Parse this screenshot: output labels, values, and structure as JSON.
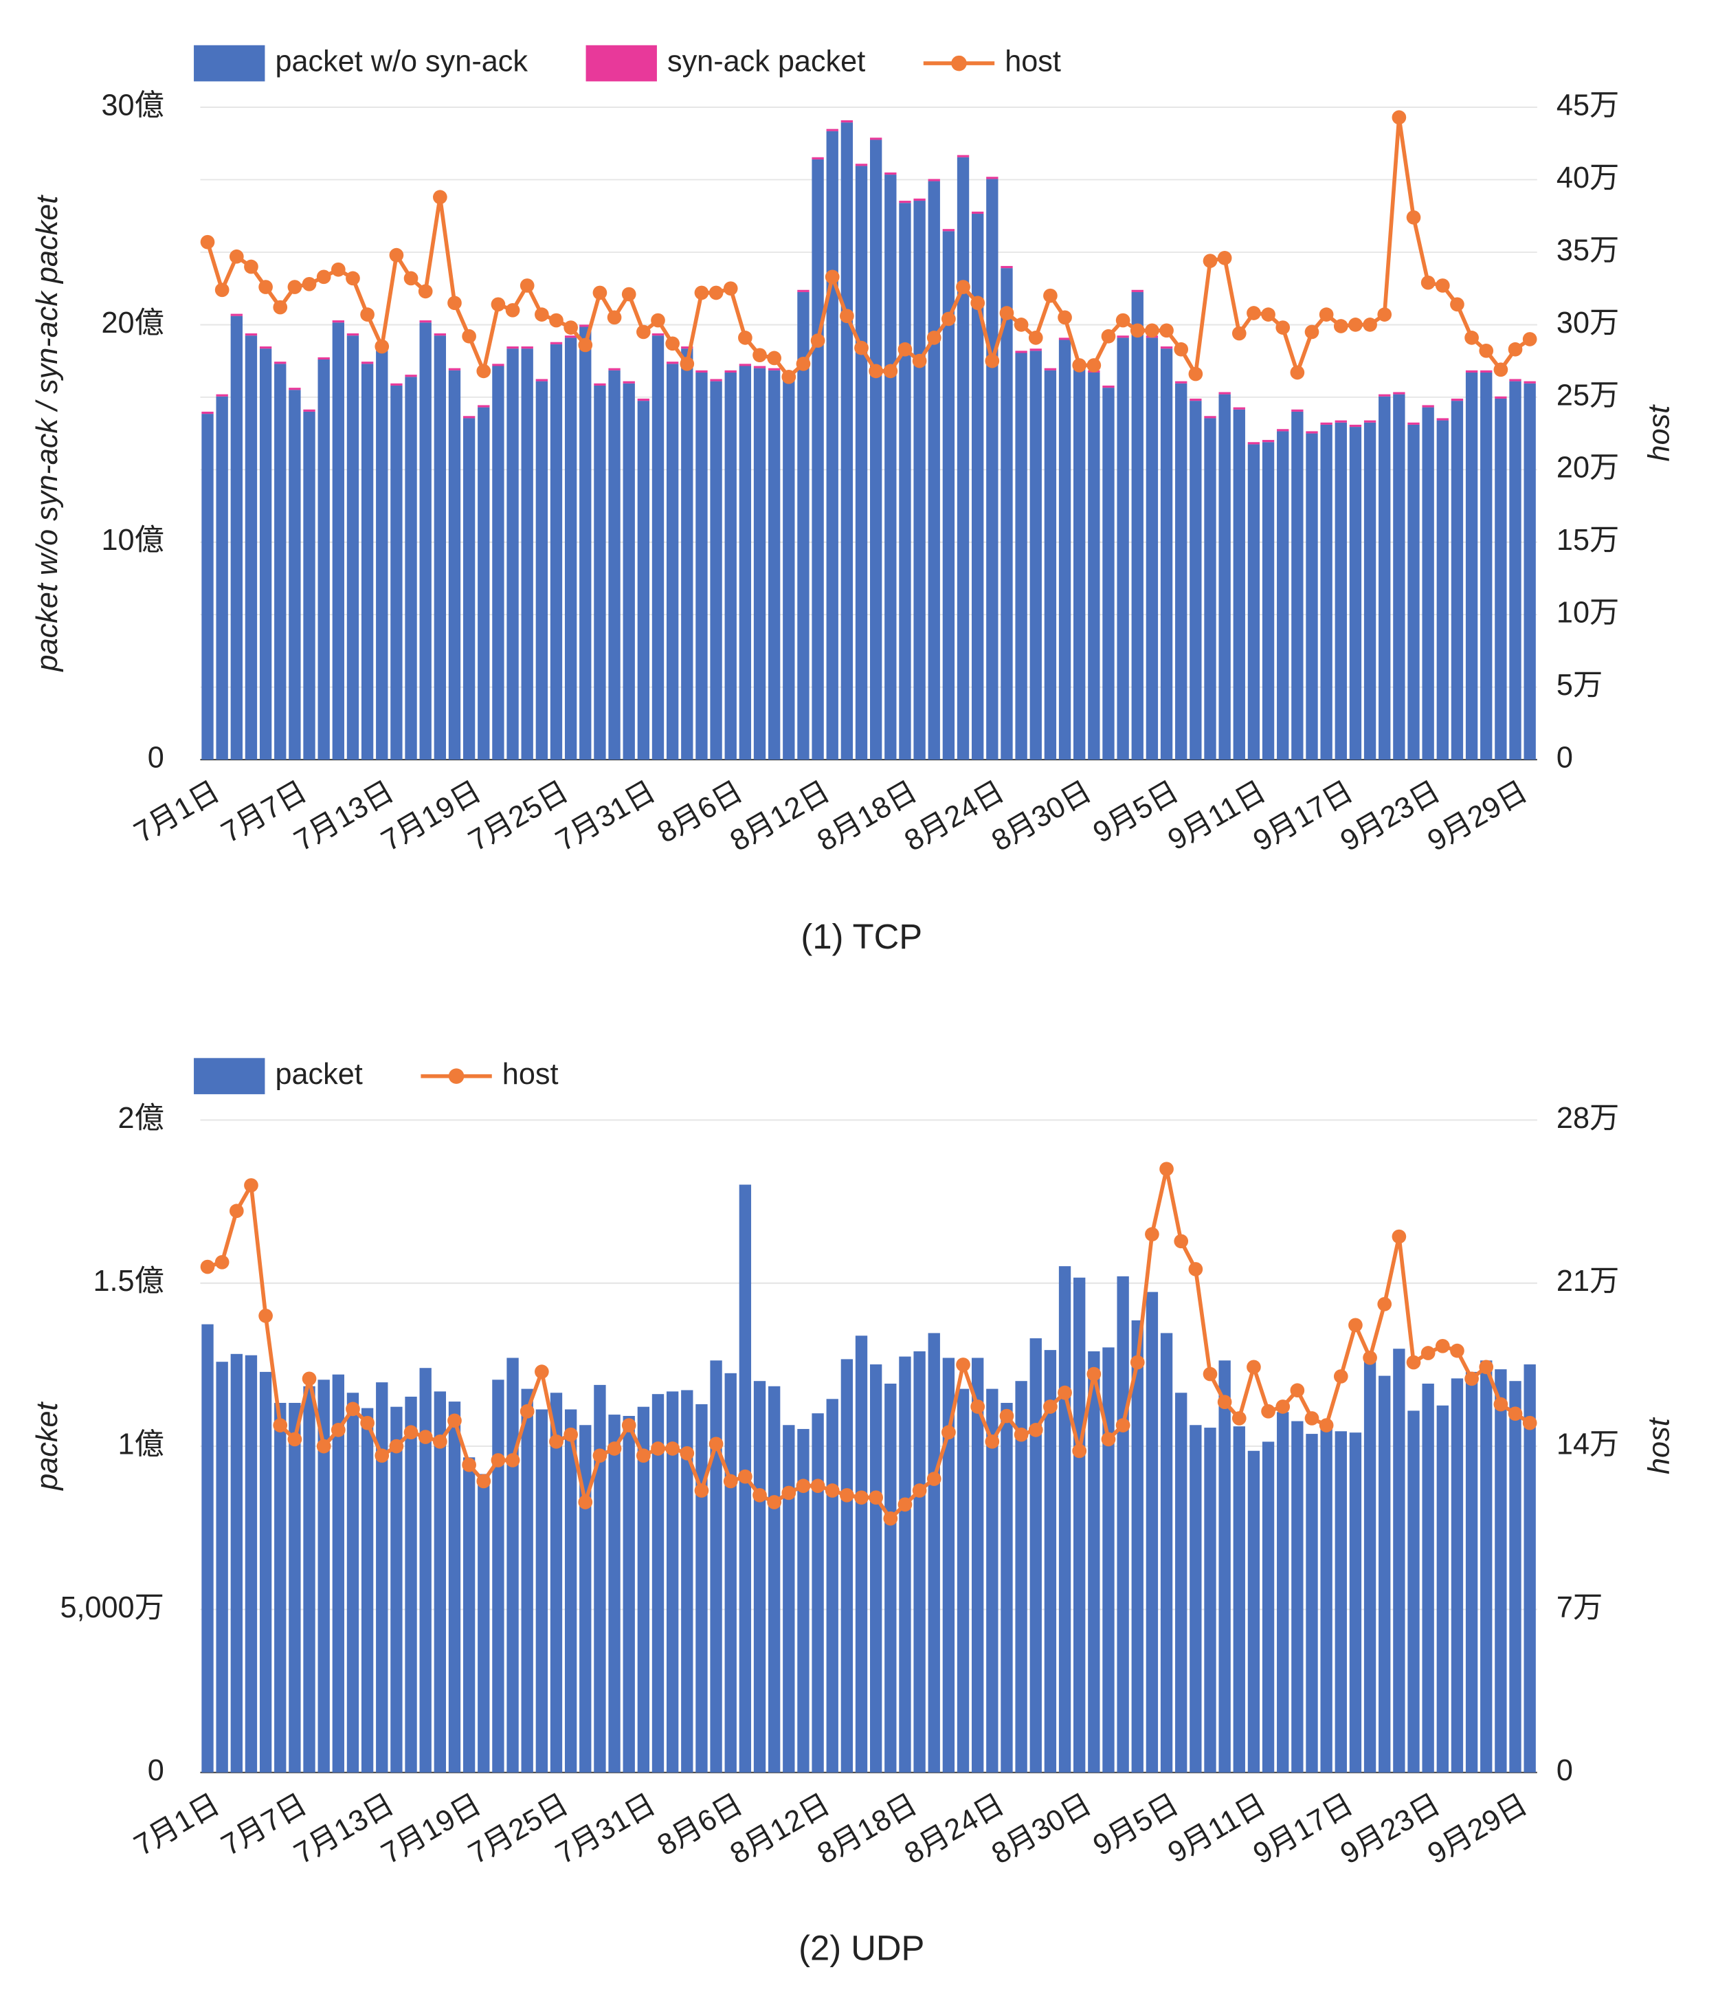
{
  "chart_data": [
    {
      "type": "bar",
      "title": "(1) TCP",
      "y_label": "packet w/o syn-ack / syn-ack packet",
      "y2_label": "host",
      "stacked": true,
      "grid": true,
      "categories": [
        "7月1日",
        null,
        null,
        null,
        null,
        null,
        "7月7日",
        null,
        null,
        null,
        null,
        null,
        "7月13日",
        null,
        null,
        null,
        null,
        null,
        "7月19日",
        null,
        null,
        null,
        null,
        null,
        "7月25日",
        null,
        null,
        null,
        null,
        null,
        "7月31日",
        null,
        null,
        null,
        null,
        null,
        "8月6日",
        null,
        null,
        null,
        null,
        null,
        "8月12日",
        null,
        null,
        null,
        null,
        null,
        "8月18日",
        null,
        null,
        null,
        null,
        null,
        "8月24日",
        null,
        null,
        null,
        null,
        null,
        "8月30日",
        null,
        null,
        null,
        null,
        null,
        "9月5日",
        null,
        null,
        null,
        null,
        null,
        "9月11日",
        null,
        null,
        null,
        null,
        null,
        "9月17日",
        null,
        null,
        null,
        null,
        null,
        "9月23日",
        null,
        null,
        null,
        null,
        null,
        "9月29日",
        null
      ],
      "ylim": [
        0,
        3000000000.0
      ],
      "yticks": [
        0,
        {
          "value": 1000000000.0,
          "label": "10億"
        },
        {
          "value": 2000000000.0,
          "label": "20億"
        },
        {
          "value": 3000000000.0,
          "label": "30億"
        }
      ],
      "y2lim": [
        0,
        450000.0
      ],
      "y2ticks": [
        0,
        {
          "value": 50000.0,
          "label": "5万"
        },
        {
          "value": 100000.0,
          "label": "10万"
        },
        {
          "value": 150000.0,
          "label": "15万"
        },
        {
          "value": 200000.0,
          "label": "20万"
        },
        {
          "value": 250000.0,
          "label": "25万"
        },
        {
          "value": 300000.0,
          "label": "30万"
        },
        {
          "value": 350000.0,
          "label": "35万"
        },
        {
          "value": 400000.0,
          "label": "40万"
        },
        {
          "value": 450000.0,
          "label": "45万"
        }
      ],
      "series": [
        {
          "name": "packet w/o syn-ack",
          "type": "bar",
          "color": "#4a72be",
          "values": [
            1590000000.0,
            1670000000.0,
            2040000000.0,
            1950000000.0,
            1890000000.0,
            1820000000.0,
            1700000000.0,
            1600000000.0,
            1840000000.0,
            2010000000.0,
            1950000000.0,
            1820000000.0,
            1880000000.0,
            1720000000.0,
            1760000000.0,
            2010000000.0,
            1950000000.0,
            1790000000.0,
            1570000000.0,
            1620000000.0,
            1810000000.0,
            1890000000.0,
            1890000000.0,
            1740000000.0,
            1910000000.0,
            1940000000.0,
            1990000000.0,
            1720000000.0,
            1790000000.0,
            1730000000.0,
            1650000000.0,
            1950000000.0,
            1820000000.0,
            1890000000.0,
            1780000000.0,
            1740000000.0,
            1780000000.0,
            1810000000.0,
            1800000000.0,
            1790000000.0,
            1760000000.0,
            2150000000.0,
            2760000000.0,
            2890000000.0,
            2930000000.0,
            2730000000.0,
            2850000000.0,
            2690000000.0,
            2560000000.0,
            2570000000.0,
            2660000000.0,
            2430000000.0,
            2770000000.0,
            2510000000.0,
            2670000000.0,
            2260000000.0,
            1870000000.0,
            1880000000.0,
            1790000000.0,
            1930000000.0,
            1800000000.0,
            1780000000.0,
            1710000000.0,
            1940000000.0,
            2150000000.0,
            1940000000.0,
            1890000000.0,
            1730000000.0,
            1650000000.0,
            1570000000.0,
            1680000000.0,
            1610000000.0,
            1450000000.0,
            1460000000.0,
            1510000000.0,
            1600000000.0,
            1500000000.0,
            1540000000.0,
            1550000000.0,
            1530000000.0,
            1550000000.0,
            1670000000.0,
            1680000000.0,
            1540000000.0,
            1620000000.0,
            1560000000.0,
            1650000000.0,
            1780000000.0,
            1780000000.0,
            1660000000.0,
            1740000000.0,
            1730000000.0
          ]
        },
        {
          "name": "syn-ack packet",
          "type": "bar",
          "color": "#e8399a",
          "values": [
            10000000.0,
            10000000.0,
            10000000.0,
            10000000.0,
            10000000.0,
            10000000.0,
            10000000.0,
            10000000.0,
            10000000.0,
            10000000.0,
            10000000.0,
            10000000.0,
            10000000.0,
            10000000.0,
            10000000.0,
            10000000.0,
            10000000.0,
            10000000.0,
            10000000.0,
            10000000.0,
            10000000.0,
            10000000.0,
            10000000.0,
            10000000.0,
            10000000.0,
            10000000.0,
            10000000.0,
            10000000.0,
            10000000.0,
            10000000.0,
            10000000.0,
            10000000.0,
            10000000.0,
            10000000.0,
            10000000.0,
            10000000.0,
            10000000.0,
            10000000.0,
            10000000.0,
            10000000.0,
            10000000.0,
            10000000.0,
            10000000.0,
            10000000.0,
            10000000.0,
            10000000.0,
            10000000.0,
            10000000.0,
            10000000.0,
            10000000.0,
            10000000.0,
            10000000.0,
            10000000.0,
            10000000.0,
            10000000.0,
            10000000.0,
            10000000.0,
            10000000.0,
            10000000.0,
            10000000.0,
            10000000.0,
            10000000.0,
            10000000.0,
            10000000.0,
            10000000.0,
            10000000.0,
            10000000.0,
            10000000.0,
            10000000.0,
            10000000.0,
            10000000.0,
            10000000.0,
            10000000.0,
            10000000.0,
            10000000.0,
            10000000.0,
            10000000.0,
            10000000.0,
            10000000.0,
            10000000.0,
            10000000.0,
            10000000.0,
            10000000.0,
            10000000.0,
            10000000.0,
            10000000.0,
            10000000.0,
            10000000.0,
            10000000.0,
            10000000.0,
            10000000.0,
            10000000.0
          ]
        },
        {
          "name": "host",
          "type": "line",
          "axis": "y2",
          "color": "#f07b38",
          "values": [
            357000.0,
            324000.0,
            347000.0,
            340000.0,
            326000.0,
            312000.0,
            326000.0,
            328000.0,
            333000.0,
            338000.0,
            332000.0,
            307000.0,
            285000.0,
            348000.0,
            332000.0,
            323000.0,
            388000.0,
            315000.0,
            292000.0,
            268000.0,
            314000.0,
            310000.0,
            327000.0,
            307000.0,
            303000.0,
            298000.0,
            286000.0,
            322000.0,
            305000.0,
            321000.0,
            295000.0,
            303000.0,
            287000.0,
            273000.0,
            322000.0,
            322000.0,
            325000.0,
            291000.0,
            279000.0,
            277000.0,
            264000.0,
            273000.0,
            289000.0,
            333000.0,
            306000.0,
            284000.0,
            268000.0,
            268000.0,
            283000.0,
            275000.0,
            291000.0,
            304000.0,
            326000.0,
            315000.0,
            275000.0,
            308000.0,
            300000.0,
            291000.0,
            320000.0,
            305000.0,
            272000.0,
            272000.0,
            292000.0,
            303000.0,
            296000.0,
            296000.0,
            296000.0,
            283000.0,
            266000.0,
            344000.0,
            346000.0,
            294000.0,
            308000.0,
            307000.0,
            298000.0,
            267000.0,
            295000.0,
            307000.0,
            299000.0,
            300000.0,
            300000.0,
            307000.0,
            443000.0,
            374000.0,
            329000.0,
            327000.0,
            314000.0,
            291000.0,
            282000.0,
            269000.0,
            283000.0,
            290000.0
          ]
        }
      ]
    },
    {
      "type": "bar",
      "title": "(2) UDP",
      "y_label": "packet",
      "y2_label": "host",
      "stacked": true,
      "grid": true,
      "categories": [
        "7月1日",
        null,
        null,
        null,
        null,
        null,
        "7月7日",
        null,
        null,
        null,
        null,
        null,
        "7月13日",
        null,
        null,
        null,
        null,
        null,
        "7月19日",
        null,
        null,
        null,
        null,
        null,
        "7月25日",
        null,
        null,
        null,
        null,
        null,
        "7月31日",
        null,
        null,
        null,
        null,
        null,
        "8月6日",
        null,
        null,
        null,
        null,
        null,
        "8月12日",
        null,
        null,
        null,
        null,
        null,
        "8月18日",
        null,
        null,
        null,
        null,
        null,
        "8月24日",
        null,
        null,
        null,
        null,
        null,
        "8月30日",
        null,
        null,
        null,
        null,
        null,
        "9月5日",
        null,
        null,
        null,
        null,
        null,
        "9月11日",
        null,
        null,
        null,
        null,
        null,
        "9月17日",
        null,
        null,
        null,
        null,
        null,
        "9月23日",
        null,
        null,
        null,
        null,
        null,
        "9月29日",
        null
      ],
      "ylim": [
        0,
        200000000.0
      ],
      "yticks": [
        0,
        {
          "value": 50000000.0,
          "label": "5,000万"
        },
        {
          "value": 100000000.0,
          "label": "1億"
        },
        {
          "value": 150000000.0,
          "label": "1.5億"
        },
        {
          "value": 200000000.0,
          "label": "2億"
        }
      ],
      "y2lim": [
        0,
        280000.0
      ],
      "y2ticks": [
        0,
        {
          "value": 70000.0,
          "label": "7万"
        },
        {
          "value": 140000.0,
          "label": "14万"
        },
        {
          "value": 210000.0,
          "label": "21万"
        },
        {
          "value": 280000.0,
          "label": "28万"
        }
      ],
      "series": [
        {
          "name": "packet",
          "type": "bar",
          "color": "#4a72be",
          "values": [
            137400000.0,
            125900000.0,
            128300000.0,
            127900000.0,
            122800000.0,
            113300000.0,
            113300000.0,
            118400000.0,
            120400000.0,
            122000000.0,
            116400000.0,
            111700000.0,
            119600000.0,
            112100000.0,
            115200000.0,
            124000000.0,
            116800000.0,
            113700000.0,
            96600000.0,
            91500000.0,
            120400000.0,
            127100000.0,
            117600000.0,
            111300000.0,
            116400000.0,
            111300000.0,
            106500000.0,
            118800000.0,
            109700000.0,
            109300000.0,
            112100000.0,
            116000000.0,
            116800000.0,
            117200000.0,
            112900000.0,
            126300000.0,
            122400000.0,
            180200000.0,
            120000000.0,
            118400000.0,
            106500000.0,
            105300000.0,
            110100000.0,
            114500000.0,
            126700000.0,
            133900000.0,
            125100000.0,
            119200000.0,
            127500000.0,
            129100000.0,
            134700000.0,
            127100000.0,
            117600000.0,
            127100000.0,
            117600000.0,
            113300000.0,
            120000000.0,
            133100000.0,
            129500000.0,
            155200000.0,
            151700000.0,
            129100000.0,
            130300000.0,
            152100000.0,
            138600000.0,
            147300000.0,
            134700000.0,
            116400000.0,
            106500000.0,
            105700000.0,
            126300000.0,
            106100000.0,
            98600000.0,
            101400000.0,
            110500000.0,
            107700000.0,
            103800000.0,
            105300000.0,
            104600000.0,
            104200000.0,
            126700000.0,
            121600000.0,
            129900000.0,
            110900000.0,
            119200000.0,
            112500000.0,
            120800000.0,
            122800000.0,
            126300000.0,
            123600000.0,
            120000000.0,
            125100000.0
          ]
        },
        {
          "name": "host",
          "type": "line",
          "axis": "y2",
          "color": "#f07b38",
          "values": [
            217000.0,
            219000.0,
            241000.0,
            252000.0,
            196000.0,
            149000.0,
            143000.0,
            169000.0,
            140000.0,
            147000.0,
            156000.0,
            150000.0,
            136000.0,
            140000.0,
            146000.0,
            144000.0,
            142000.0,
            151000.0,
            132000.0,
            125000.0,
            134000.0,
            134000.0,
            155000.0,
            172000.0,
            142000.0,
            145000.0,
            116000.0,
            136000.0,
            139000.0,
            149000.0,
            136000.0,
            139000.0,
            139000.0,
            137000.0,
            121000.0,
            141000.0,
            125000.0,
            127000.0,
            119000.0,
            116000.0,
            120000.0,
            123000.0,
            123000.0,
            121000.0,
            119000.0,
            118000.0,
            118000.0,
            109000.0,
            115000.0,
            121000.0,
            126000.0,
            146000.0,
            175000.0,
            157000.0,
            142000.0,
            153000.0,
            145000.0,
            147000.0,
            157000.0,
            163000.0,
            138000.0,
            171000.0,
            143000.0,
            149000.0,
            176000.0,
            231000.0,
            259000.0,
            228000.0,
            216000.0,
            171000.0,
            159000.0,
            152000.0,
            174000.0,
            155000.0,
            157000.0,
            164000.0,
            152000.0,
            149000.0,
            170000.0,
            192000.0,
            178000.0,
            201000.0,
            230000.0,
            176000.0,
            180000.0,
            183000.0,
            181000.0,
            169000.0,
            174000.0,
            158000.0,
            154000.0,
            150000.0
          ]
        }
      ]
    }
  ]
}
